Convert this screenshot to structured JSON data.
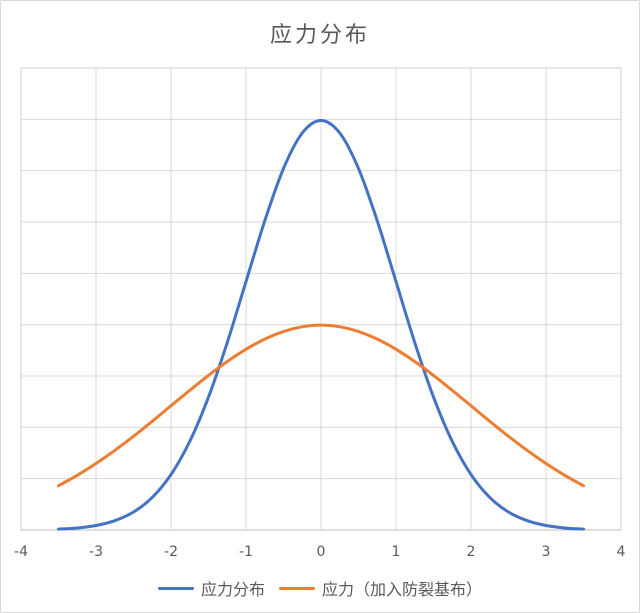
{
  "chart_data": {
    "type": "line",
    "title": "应力分布",
    "xlabel": "",
    "ylabel": "",
    "xlim": [
      -4,
      4
    ],
    "ylim": [
      0,
      0.45
    ],
    "y_grid_step": 0.05,
    "grid": "on",
    "legend_position": "bottom",
    "x_ticks": [
      -4,
      -3,
      -2,
      -1,
      0,
      1,
      2,
      3,
      4
    ],
    "x_tick_labels": [
      "-4",
      "-3",
      "-2",
      "-1",
      "0",
      "1",
      "2",
      "3",
      "4"
    ],
    "x": [
      -3.5,
      -3.25,
      -3,
      -2.75,
      -2.5,
      -2.25,
      -2,
      -1.75,
      -1.5,
      -1.25,
      -1,
      -0.75,
      -0.5,
      -0.25,
      0,
      0.25,
      0.5,
      0.75,
      1,
      1.25,
      1.5,
      1.75,
      2,
      2.25,
      2.5,
      2.75,
      3,
      3.25,
      3.5
    ],
    "series": [
      {
        "name": "应力分布",
        "color": "#4472C4",
        "values": [
          0.0009,
          0.002,
          0.0044,
          0.0091,
          0.0175,
          0.0317,
          0.054,
          0.0863,
          0.1295,
          0.1826,
          0.242,
          0.3011,
          0.3521,
          0.3867,
          0.3989,
          0.3867,
          0.3521,
          0.3011,
          0.242,
          0.1826,
          0.1295,
          0.0863,
          0.054,
          0.0317,
          0.0175,
          0.0091,
          0.0044,
          0.002,
          0.0009
        ]
      },
      {
        "name": "应力（加入防裂基布）",
        "color": "#ED7D31",
        "values": [
          0.0431,
          0.0533,
          0.0648,
          0.0775,
          0.0913,
          0.1059,
          0.121,
          0.136,
          0.1506,
          0.1641,
          0.176,
          0.1859,
          0.1933,
          0.1979,
          0.1995,
          0.1979,
          0.1933,
          0.1859,
          0.176,
          0.1641,
          0.1506,
          0.136,
          0.121,
          0.1059,
          0.0913,
          0.0775,
          0.0648,
          0.0533,
          0.0431
        ]
      }
    ],
    "colors": {
      "gridline": "#d9d9d9",
      "plot_border": "#cfcfcf",
      "axis_line": "#bfbfbf",
      "axis_text": "#595959",
      "title_text": "#595959",
      "frame_border": "#d9d9d9"
    }
  }
}
